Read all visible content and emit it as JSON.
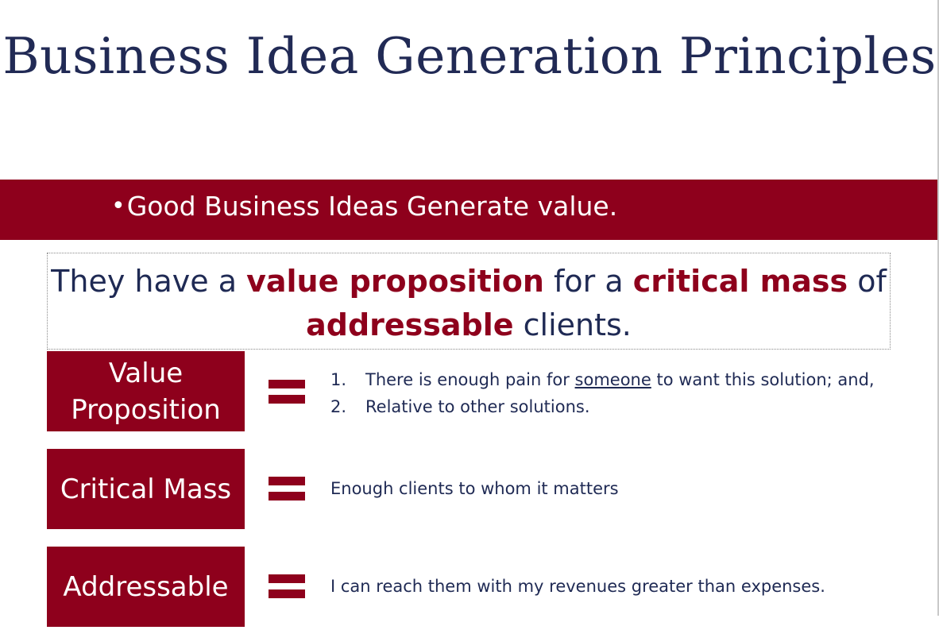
{
  "slide": {
    "title": "Business Idea Generation Principles",
    "banner": {
      "bullet": "•",
      "text": "Good Business Ideas Generate value."
    },
    "definition": {
      "part1": "They have a ",
      "highlight1": "value proposition",
      "part2": " for a ",
      "highlight2": "critical mass",
      "part3": " of ",
      "highlight3": "addressable",
      "part4": " clients."
    },
    "terms": [
      {
        "label_line1": "Value",
        "label_line2": "Proposition",
        "items": [
          {
            "number": "1.",
            "before": "There is enough pain for ",
            "underlined": "someone",
            "after": " to want this solution;  and,"
          },
          {
            "number": "2.",
            "text": "Relative to other solutions."
          }
        ]
      },
      {
        "label": "Critical Mass",
        "description": "Enough clients to whom it matters"
      },
      {
        "label": "Addressable",
        "description": "I can reach them with my revenues greater than expenses."
      }
    ]
  },
  "colors": {
    "accent": "#8e001c",
    "title": "#212a55",
    "body_text": "#1f2a54",
    "background": "#ffffff"
  }
}
